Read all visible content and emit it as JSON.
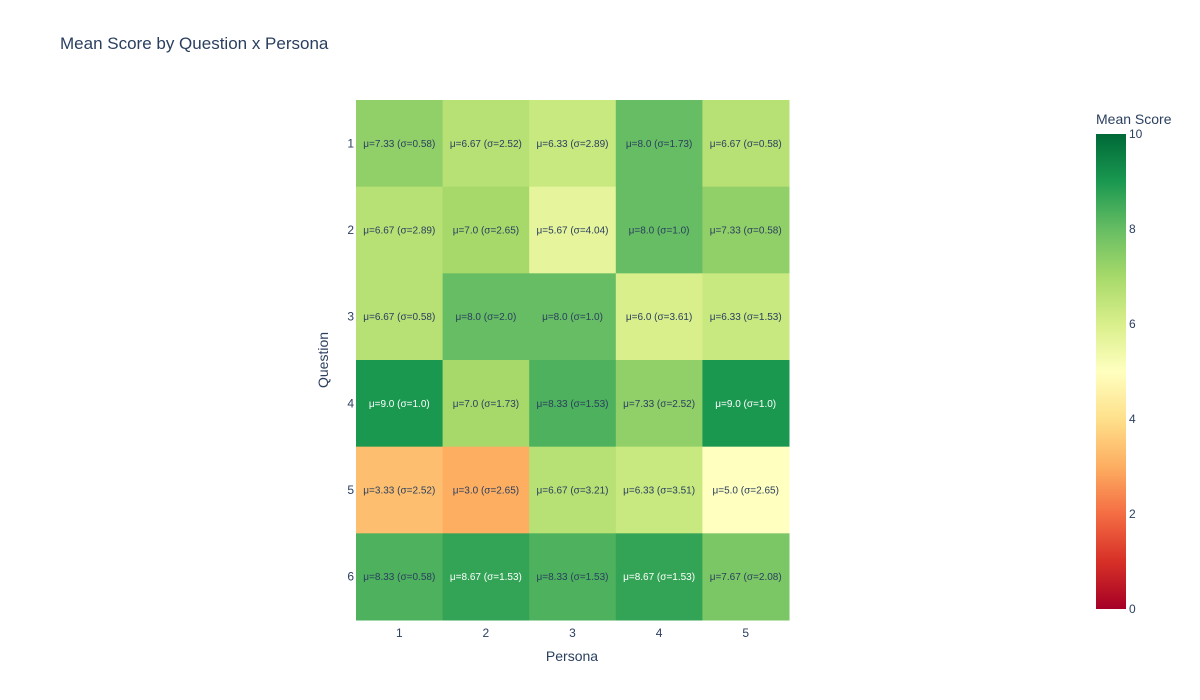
{
  "chart_data": {
    "type": "heatmap",
    "title": "Mean Score by Question x Persona",
    "xlabel": "Persona",
    "ylabel": "Question",
    "x_categories": [
      "1",
      "2",
      "3",
      "4",
      "5"
    ],
    "y_categories": [
      "1",
      "2",
      "3",
      "4",
      "5",
      "6"
    ],
    "values": [
      [
        7.33,
        6.67,
        6.33,
        8.0,
        6.67
      ],
      [
        6.67,
        7.0,
        5.67,
        8.0,
        7.33
      ],
      [
        6.67,
        8.0,
        8.0,
        6.0,
        6.33
      ],
      [
        9.0,
        7.0,
        8.33,
        7.33,
        9.0
      ],
      [
        3.33,
        3.0,
        6.67,
        6.33,
        5.0
      ],
      [
        8.33,
        8.67,
        8.33,
        8.67,
        7.67
      ]
    ],
    "cell_labels": [
      [
        "μ=7.33 (σ=0.58)",
        "μ=6.67 (σ=2.52)",
        "μ=6.33 (σ=2.89)",
        "μ=8.0 (σ=1.73)",
        "μ=6.67 (σ=0.58)"
      ],
      [
        "μ=6.67 (σ=2.89)",
        "μ=7.0 (σ=2.65)",
        "μ=5.67 (σ=4.04)",
        "μ=8.0 (σ=1.0)",
        "μ=7.33 (σ=0.58)"
      ],
      [
        "μ=6.67 (σ=0.58)",
        "μ=8.0 (σ=2.0)",
        "μ=8.0 (σ=1.0)",
        "μ=6.0 (σ=3.61)",
        "μ=6.33 (σ=1.53)"
      ],
      [
        "μ=9.0 (σ=1.0)",
        "μ=7.0 (σ=1.73)",
        "μ=8.33 (σ=1.53)",
        "μ=7.33 (σ=2.52)",
        "μ=9.0 (σ=1.0)"
      ],
      [
        "μ=3.33 (σ=2.52)",
        "μ=3.0 (σ=2.65)",
        "μ=6.67 (σ=3.21)",
        "μ=6.33 (σ=3.51)",
        "μ=5.0 (σ=2.65)"
      ],
      [
        "μ=8.33 (σ=0.58)",
        "μ=8.67 (σ=1.53)",
        "μ=8.33 (σ=1.53)",
        "μ=8.67 (σ=1.53)",
        "μ=7.67 (σ=2.08)"
      ]
    ],
    "colorscale": "RdYlGn",
    "zlim": [
      0,
      10
    ],
    "colorbar": {
      "title": "Mean Score",
      "ticks": [
        "0",
        "2",
        "4",
        "6",
        "8",
        "10"
      ]
    },
    "grid": false
  }
}
